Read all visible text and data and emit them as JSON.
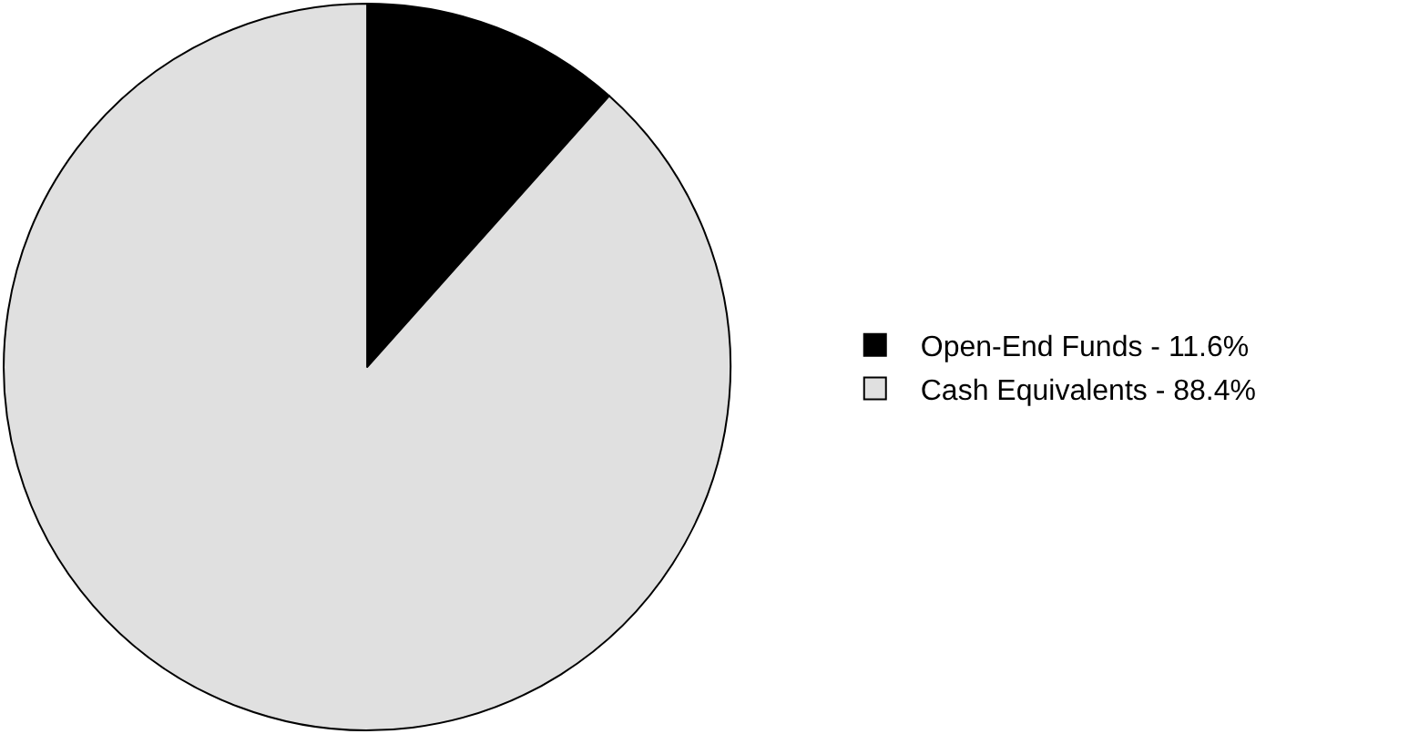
{
  "chart_data": {
    "type": "pie",
    "categories": [
      "Open-End Funds - 11.6%",
      "Cash Equivalents - 88.4%"
    ],
    "values": [
      11.6,
      88.4
    ],
    "colors": [
      "#000000",
      "#e0e0e0"
    ],
    "legend": "right"
  }
}
